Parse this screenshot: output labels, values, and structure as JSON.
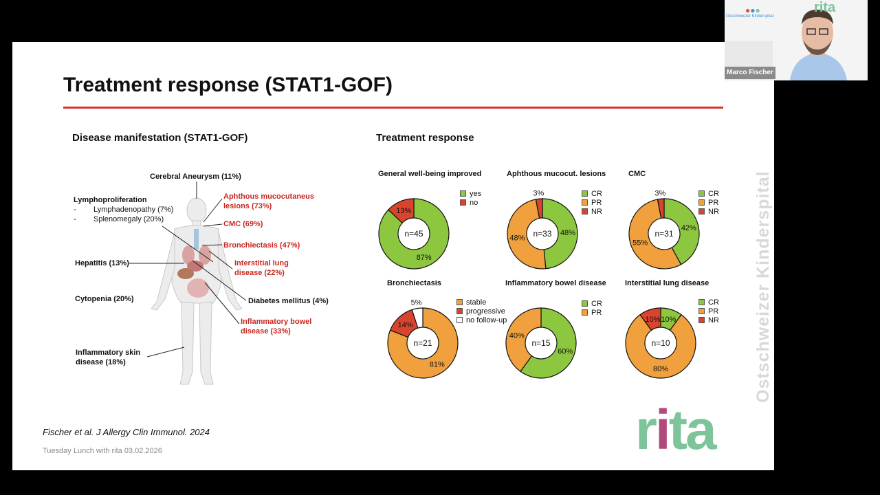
{
  "slide": {
    "title": "Treatment response (STAT1-GOF)",
    "left_heading": "Disease manifestation (STAT1-GOF)",
    "right_heading": "Treatment response",
    "reference": "Fischer et al. J Allergy Clin Immunol. 2024",
    "footer": "Tuesday Lunch with rita 03.02.2026",
    "vertical_brand": "Ostschweizer Kinderspital",
    "logo_letters": [
      "r",
      "i",
      "t",
      "a"
    ],
    "logo_colors": {
      "r": "#7dc49a",
      "i": "#b04a7c",
      "t": "#7dc49a",
      "a": "#7dc49a"
    }
  },
  "manifestations": {
    "cerebral": "Cerebral Aneurysm (11%)",
    "lympho_title": "Lymphoproliferation",
    "lympho_item1": "Lymphadenopathy (7%)",
    "lympho_item2": "Splenomegaly (20%)",
    "bullet": "-",
    "aphthous": "Aphthous mucocutaneus lesions (73%)",
    "cmc": "CMC (69%)",
    "bronchiectasis": "Bronchiectasis (47%)",
    "interstitial": "Interstitial lung disease (22%)",
    "hepatitis": "Hepatitis (13%)",
    "cytopenia": "Cytopenia (20%)",
    "diabetes": "Diabetes mellitus (4%)",
    "ibd": "Inflammatory bowel disease (33%)",
    "skin": "Inflammatory skin disease (18%)"
  },
  "colors": {
    "green": "#8dc63f",
    "orange": "#f0a03c",
    "red": "#d9442f",
    "white": "#ffffff",
    "accent_red": "#c8261f"
  },
  "chart_data": [
    {
      "type": "pie",
      "title": "General well-being improved",
      "center": "n=45",
      "slices": [
        {
          "label": "yes",
          "value": 87,
          "color": "#8dc63f"
        },
        {
          "label": "no",
          "value": 13,
          "color": "#d9442f"
        }
      ],
      "pct_labels": [
        "87%",
        "13%"
      ]
    },
    {
      "type": "pie",
      "title": "Aphthous mucocut. lesions",
      "center": "n=33",
      "slices": [
        {
          "label": "CR",
          "value": 48,
          "color": "#8dc63f"
        },
        {
          "label": "PR",
          "value": 48,
          "color": "#f0a03c"
        },
        {
          "label": "NR",
          "value": 3,
          "color": "#d9442f"
        }
      ],
      "pct_labels": [
        "48%",
        "48%",
        "3%"
      ]
    },
    {
      "type": "pie",
      "title": "CMC",
      "center": "n=31",
      "slices": [
        {
          "label": "CR",
          "value": 42,
          "color": "#8dc63f"
        },
        {
          "label": "PR",
          "value": 55,
          "color": "#f0a03c"
        },
        {
          "label": "NR",
          "value": 3,
          "color": "#d9442f"
        }
      ],
      "pct_labels": [
        "42%",
        "55%",
        "3%"
      ]
    },
    {
      "type": "pie",
      "title": "Bronchiectasis",
      "center": "n=21",
      "slices": [
        {
          "label": "stable",
          "value": 81,
          "color": "#f0a03c"
        },
        {
          "label": "progressive",
          "value": 14,
          "color": "#d9442f"
        },
        {
          "label": "no follow-up",
          "value": 5,
          "color": "#ffffff"
        }
      ],
      "pct_labels": [
        "81%",
        "14%",
        "5%"
      ]
    },
    {
      "type": "pie",
      "title": "Inflammatory bowel disease",
      "center": "n=15",
      "slices": [
        {
          "label": "CR",
          "value": 60,
          "color": "#8dc63f"
        },
        {
          "label": "PR",
          "value": 40,
          "color": "#f0a03c"
        }
      ],
      "pct_labels": [
        "60%",
        "40%"
      ]
    },
    {
      "type": "pie",
      "title": "Interstitial lung disease",
      "center": "n=10",
      "slices": [
        {
          "label": "CR",
          "value": 10,
          "color": "#8dc63f"
        },
        {
          "label": "PR",
          "value": 80,
          "color": "#f0a03c"
        },
        {
          "label": "NR",
          "value": 10,
          "color": "#d9442f"
        }
      ],
      "pct_labels": [
        "10%",
        "80%",
        "10%"
      ]
    }
  ],
  "webcam": {
    "participant_name": "Marco Fischer",
    "hospital_text": "Ostschweizer Kinderspital",
    "logo_text": "rita"
  }
}
